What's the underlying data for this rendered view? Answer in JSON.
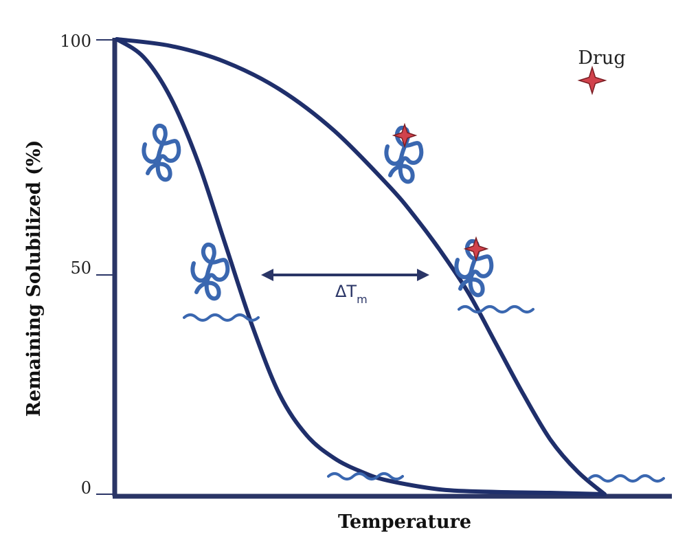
{
  "chart_data": {
    "type": "line",
    "xlabel": "Temperature",
    "ylabel": "Remaining Solubilized (%)",
    "ylim": [
      0,
      100
    ],
    "yticks": [
      "100",
      "50",
      "0"
    ],
    "yticks_values": [
      100,
      50,
      0
    ],
    "grid": false,
    "series": [
      {
        "points": [
          [
            0,
            100
          ],
          [
            5,
            96
          ],
          [
            10,
            87
          ],
          [
            15,
            73
          ],
          [
            20,
            55
          ],
          [
            25,
            37
          ],
          [
            30,
            22
          ],
          [
            35,
            13
          ],
          [
            40,
            8
          ],
          [
            45,
            5
          ],
          [
            50,
            3
          ],
          [
            60,
            1
          ],
          [
            70,
            0.5
          ],
          [
            80,
            0.3
          ],
          [
            90,
            0
          ]
        ]
      },
      {
        "points": [
          [
            0,
            100
          ],
          [
            10,
            98.5
          ],
          [
            20,
            95
          ],
          [
            30,
            89
          ],
          [
            40,
            80
          ],
          [
            50,
            68
          ],
          [
            55,
            61
          ],
          [
            60,
            53
          ],
          [
            65,
            44
          ],
          [
            70,
            33
          ],
          [
            75,
            22
          ],
          [
            80,
            12
          ],
          [
            85,
            5
          ],
          [
            90,
            0
          ]
        ]
      }
    ],
    "annotations": {
      "delta_label": "ΔT",
      "delta_sub": "m",
      "legend_label": "Drug",
      "colors": {
        "curve": "#1f2f6b",
        "axis": "#2a3566",
        "protein": "#3a67b0",
        "drug": "#d1424c"
      }
    }
  }
}
